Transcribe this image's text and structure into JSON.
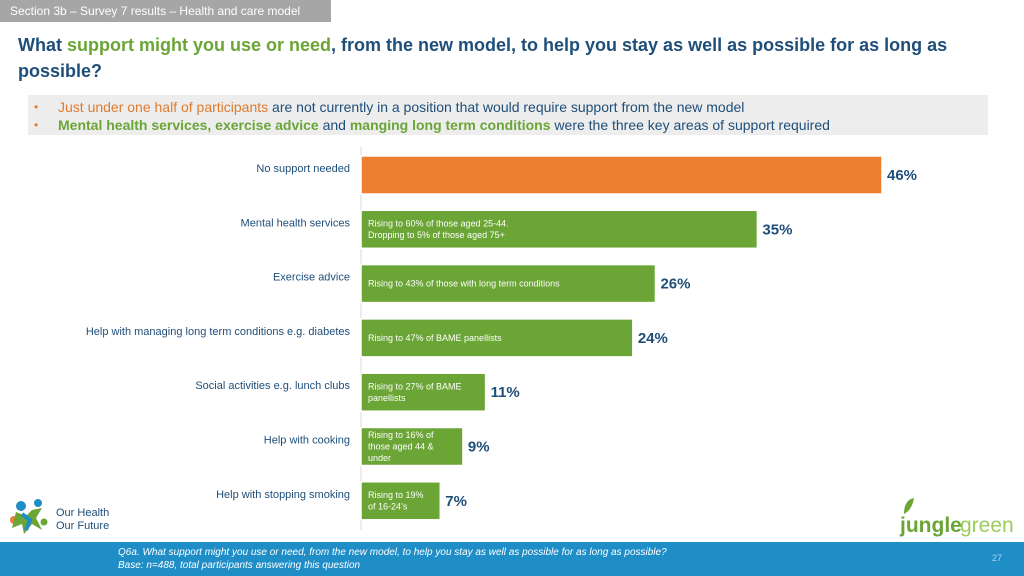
{
  "header": {
    "section": "Section 3b – Survey 7 results – Health and care model",
    "title_part1": "What ",
    "title_highlight": "support might you use or need",
    "title_part2": ", from the new model, to help you stay as well as possible for as long as possible?"
  },
  "bullets": [
    {
      "highlight": "Just under one half of participants",
      "rest": " are not currently in a position that would require support from the new model"
    },
    {
      "highlight1": "Mental health services, exercise advice",
      "mid1": " and ",
      "highlight2": "manging long term conditions",
      "rest": " were the three key areas of support required"
    }
  ],
  "colors": {
    "orange": "#ed7d31",
    "green": "#6aa535",
    "navy": "#1f4e79",
    "footer": "#1f8dc6"
  },
  "chart_data": {
    "type": "bar",
    "orientation": "horizontal",
    "categories": [
      "No support needed",
      "Mental health services",
      "Exercise advice",
      "Help with managing long term conditions e.g. diabetes",
      "Social activities e.g. lunch clubs",
      "Help with cooking",
      "Help with stopping smoking"
    ],
    "values": [
      46,
      35,
      26,
      24,
      11,
      9,
      7
    ],
    "value_labels": [
      "46%",
      "35%",
      "26%",
      "24%",
      "11%",
      "9%",
      "7%"
    ],
    "bar_annotations": [
      [],
      [
        "Rising to 60% of those aged 25-44.",
        "Dropping to 5% of those aged 75+"
      ],
      [
        "Rising to 43% of those with long term conditions"
      ],
      [
        "Rising to 47% of BAME panellists"
      ],
      [
        "Rising to 27% of BAME",
        "panellists"
      ],
      [
        "Rising to 16% of",
        "those aged 44 &",
        "under"
      ],
      [
        "Rising to 19%",
        "of 16-24’s"
      ]
    ],
    "bar_colors": [
      "#ed7d31",
      "#6aa535",
      "#6aa535",
      "#6aa535",
      "#6aa535",
      "#6aa535",
      "#6aa535"
    ],
    "xlim": [
      0,
      46
    ],
    "unit": "%"
  },
  "footer": {
    "question": "Q6a. What support might you use or need, from the new model, to help you stay as well as possible for as long as possible?",
    "base": "Base: n=488, total participants answering this question",
    "page": "27"
  },
  "logos": {
    "left_line1": "Our Health",
    "left_line2": "Our Future",
    "right_part1": "jungle",
    "right_part2": "green"
  }
}
